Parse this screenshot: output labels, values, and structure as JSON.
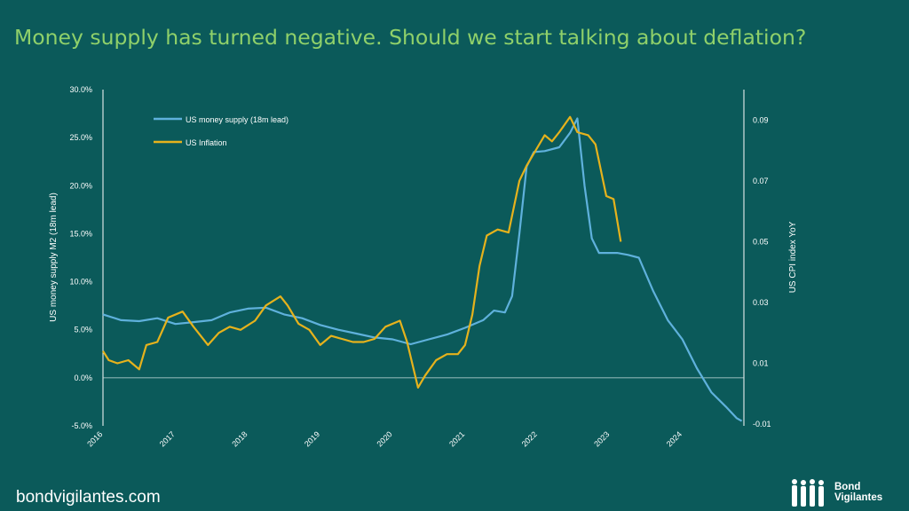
{
  "title": "Money supply has turned negative. Should we start talking about deflation?",
  "footer": {
    "url": "bondvigilantes.com"
  },
  "logo": {
    "line1": "Bond",
    "line2": "Vigilantes"
  },
  "colors": {
    "background": "#0b5a5a",
    "title": "#8fd06a",
    "money_supply": "#5fb1dc",
    "inflation": "#e6b21c"
  },
  "chart_data": {
    "type": "line",
    "left_axis": {
      "label": "US money supply M2 (18m lead)",
      "ticks": [
        "30.0%",
        "25.0%",
        "20.0%",
        "15.0%",
        "10.0%",
        "5.0%",
        "0.0%",
        "-5.0%"
      ],
      "range": [
        -5,
        30
      ]
    },
    "right_axis": {
      "label": "US CPI index YoY",
      "ticks": [
        "0.09",
        "0.07",
        "0.05",
        "0.03",
        "0.01",
        "-0.01"
      ],
      "range": [
        -0.01,
        0.1
      ]
    },
    "x_axis": {
      "ticks": [
        "2016",
        "2017",
        "2018",
        "2019",
        "2020",
        "2021",
        "2022",
        "2023",
        "2024"
      ],
      "range": [
        2016,
        2024.85
      ]
    },
    "grid": false,
    "legend_position": "top-left",
    "series": [
      {
        "name": "US money supply (18m lead)",
        "axis": "left",
        "x": [
          2016.0,
          2016.25,
          2016.5,
          2016.75,
          2017.0,
          2017.25,
          2017.5,
          2017.75,
          2018.0,
          2018.25,
          2018.5,
          2018.75,
          2019.0,
          2019.25,
          2019.5,
          2019.75,
          2020.0,
          2020.25,
          2020.5,
          2020.75,
          2021.0,
          2021.25,
          2021.4,
          2021.55,
          2021.65,
          2021.75,
          2021.85,
          2021.95,
          2022.1,
          2022.3,
          2022.45,
          2022.55,
          2022.65,
          2022.75,
          2022.85,
          2022.95,
          2023.1,
          2023.25,
          2023.4,
          2023.6,
          2023.8,
          2024.0,
          2024.2,
          2024.4,
          2024.6,
          2024.75,
          2024.82
        ],
        "values": [
          6.6,
          6.0,
          5.9,
          6.2,
          5.6,
          5.8,
          6.0,
          6.8,
          7.2,
          7.3,
          6.6,
          6.2,
          5.5,
          5.0,
          4.6,
          4.2,
          4.0,
          3.5,
          4.0,
          4.5,
          5.2,
          6.0,
          7.0,
          6.8,
          8.5,
          15.0,
          22.0,
          23.5,
          23.6,
          24.0,
          25.5,
          27.0,
          20.0,
          14.5,
          13.0,
          13.0,
          13.0,
          12.8,
          12.5,
          9.0,
          6.0,
          4.0,
          1.0,
          -1.5,
          -3.0,
          -4.2,
          -4.5
        ]
      },
      {
        "name": "US Inflation",
        "axis": "right",
        "x": [
          2016.0,
          2016.08,
          2016.2,
          2016.35,
          2016.5,
          2016.6,
          2016.75,
          2016.9,
          2017.1,
          2017.25,
          2017.45,
          2017.6,
          2017.75,
          2017.9,
          2018.1,
          2018.25,
          2018.45,
          2018.55,
          2018.7,
          2018.85,
          2019.0,
          2019.15,
          2019.3,
          2019.45,
          2019.6,
          2019.75,
          2019.9,
          2020.1,
          2020.2,
          2020.35,
          2020.45,
          2020.6,
          2020.75,
          2020.9,
          2021.0,
          2021.1,
          2021.2,
          2021.3,
          2021.45,
          2021.6,
          2021.75,
          2021.85,
          2021.95,
          2022.1,
          2022.2,
          2022.3,
          2022.45,
          2022.55,
          2022.7,
          2022.8,
          2022.95,
          2023.05,
          2023.15
        ],
        "values": [
          0.014,
          0.011,
          0.01,
          0.011,
          0.008,
          0.016,
          0.017,
          0.025,
          0.027,
          0.022,
          0.016,
          0.02,
          0.022,
          0.021,
          0.024,
          0.029,
          0.032,
          0.029,
          0.023,
          0.021,
          0.016,
          0.019,
          0.018,
          0.017,
          0.017,
          0.018,
          0.022,
          0.024,
          0.017,
          0.002,
          0.006,
          0.011,
          0.013,
          0.013,
          0.016,
          0.026,
          0.042,
          0.052,
          0.054,
          0.053,
          0.07,
          0.075,
          0.079,
          0.085,
          0.083,
          0.086,
          0.091,
          0.086,
          0.085,
          0.082,
          0.065,
          0.064,
          0.05
        ]
      }
    ]
  }
}
